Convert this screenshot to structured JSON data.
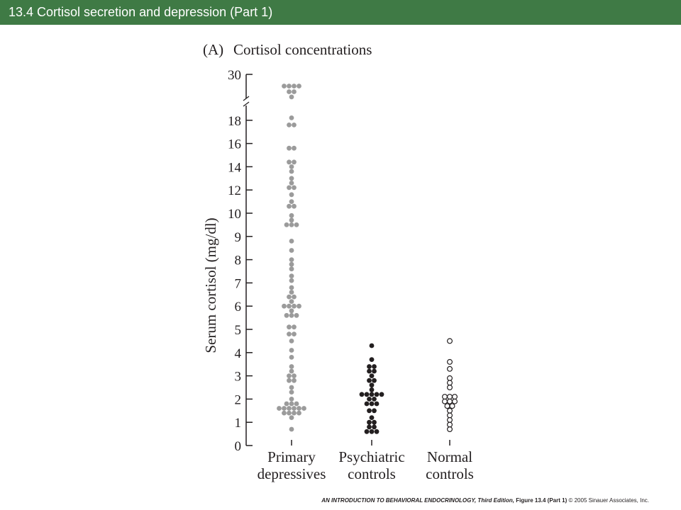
{
  "slide": {
    "title": "13.4  Cortisol secretion and depression (Part 1)",
    "footer_book": "AN INTRODUCTION TO BEHAVIORAL ENDOCRINOLOGY, Third Edition,",
    "footer_figure": "Figure 13.4 (Part 1)",
    "footer_copyright": "© 2005 Sinauer Associates, Inc."
  },
  "colors": {
    "title_bar": "#3f7a45",
    "primary_dot": "#9b9b9b",
    "psychiatric_dot": "#231f20",
    "normal_dot_stroke": "#231f20",
    "axis": "#231f20"
  },
  "chart_data": {
    "type": "scatter",
    "panel_label": "(A)",
    "title": "Cortisol concentrations",
    "ylabel": "Serum cortisol (mg/dl)",
    "xlabel": "",
    "ylim": [
      0,
      30
    ],
    "y_axis_break": "between 18 and 30",
    "yticks": [
      "0",
      "1",
      "2",
      "3",
      "4",
      "5",
      "6",
      "7",
      "8",
      "9",
      "10",
      "12",
      "14",
      "16",
      "18",
      "30"
    ],
    "categories": [
      "Primary depressives",
      "Psychiatric controls",
      "Normal controls"
    ],
    "category_lines": [
      [
        "Primary",
        "depressives"
      ],
      [
        "Psychiatric",
        "controls"
      ],
      [
        "Normal",
        "controls"
      ]
    ],
    "series": [
      {
        "category": "Primary depressives",
        "marker": "filled-gray",
        "values": [
          26.5,
          26.5,
          25.8,
          25.8,
          25.1,
          25.1,
          23.8,
          18.6,
          17.6,
          17.4,
          15.6,
          15.4,
          14.4,
          14.2,
          14.0,
          13.6,
          13.0,
          12.6,
          12.2,
          12.0,
          11.6,
          11.0,
          10.6,
          10.4,
          9.9,
          9.7,
          9.5,
          9.5,
          9.5,
          8.8,
          8.4,
          8.0,
          7.8,
          7.6,
          7.3,
          7.1,
          6.8,
          6.6,
          6.4,
          6.4,
          6.2,
          6.0,
          6.0,
          6.0,
          6.0,
          5.8,
          5.6,
          5.5,
          5.5,
          5.1,
          5.0,
          4.8,
          4.7,
          4.5,
          4.1,
          3.8,
          3.4,
          3.2,
          3.0,
          3.0,
          2.8,
          2.8,
          2.5,
          2.3,
          2.0,
          1.8,
          1.8,
          1.7,
          1.6,
          1.6,
          1.6,
          1.5,
          1.5,
          1.5,
          1.4,
          1.4,
          1.3,
          1.3,
          1.2,
          0.7
        ]
      },
      {
        "category": "Psychiatric controls",
        "marker": "filled-black",
        "values": [
          4.3,
          3.7,
          3.4,
          3.4,
          3.2,
          3.2,
          3.0,
          2.8,
          2.8,
          2.6,
          2.4,
          2.2,
          2.1,
          2.1,
          2.1,
          2.1,
          2.0,
          1.9,
          1.8,
          1.7,
          1.7,
          1.5,
          1.4,
          1.2,
          1.0,
          1.0,
          0.8,
          0.8,
          0.6,
          0.5,
          0.5
        ]
      },
      {
        "category": "Normal controls",
        "marker": "open-circle",
        "values": [
          4.5,
          3.6,
          3.3,
          2.9,
          2.7,
          2.5,
          2.1,
          2.1,
          2.0,
          1.9,
          1.8,
          1.8,
          1.7,
          1.6,
          1.5,
          1.3,
          1.1,
          0.9,
          0.7
        ]
      }
    ]
  }
}
